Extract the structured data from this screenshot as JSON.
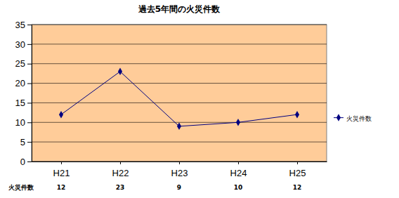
{
  "chart_data": {
    "type": "line",
    "title": "過去5年間の火災件数",
    "categories": [
      "H21",
      "H22",
      "H23",
      "H24",
      "H25"
    ],
    "series": [
      {
        "name": "火災件数",
        "color": "#000080",
        "marker": "diamond",
        "values": [
          12,
          23,
          9,
          10,
          12
        ]
      }
    ],
    "ylim": [
      0,
      35
    ],
    "yticks": [
      0,
      5,
      10,
      15,
      20,
      25,
      30,
      35
    ],
    "grid": true,
    "legend": "right"
  }
}
